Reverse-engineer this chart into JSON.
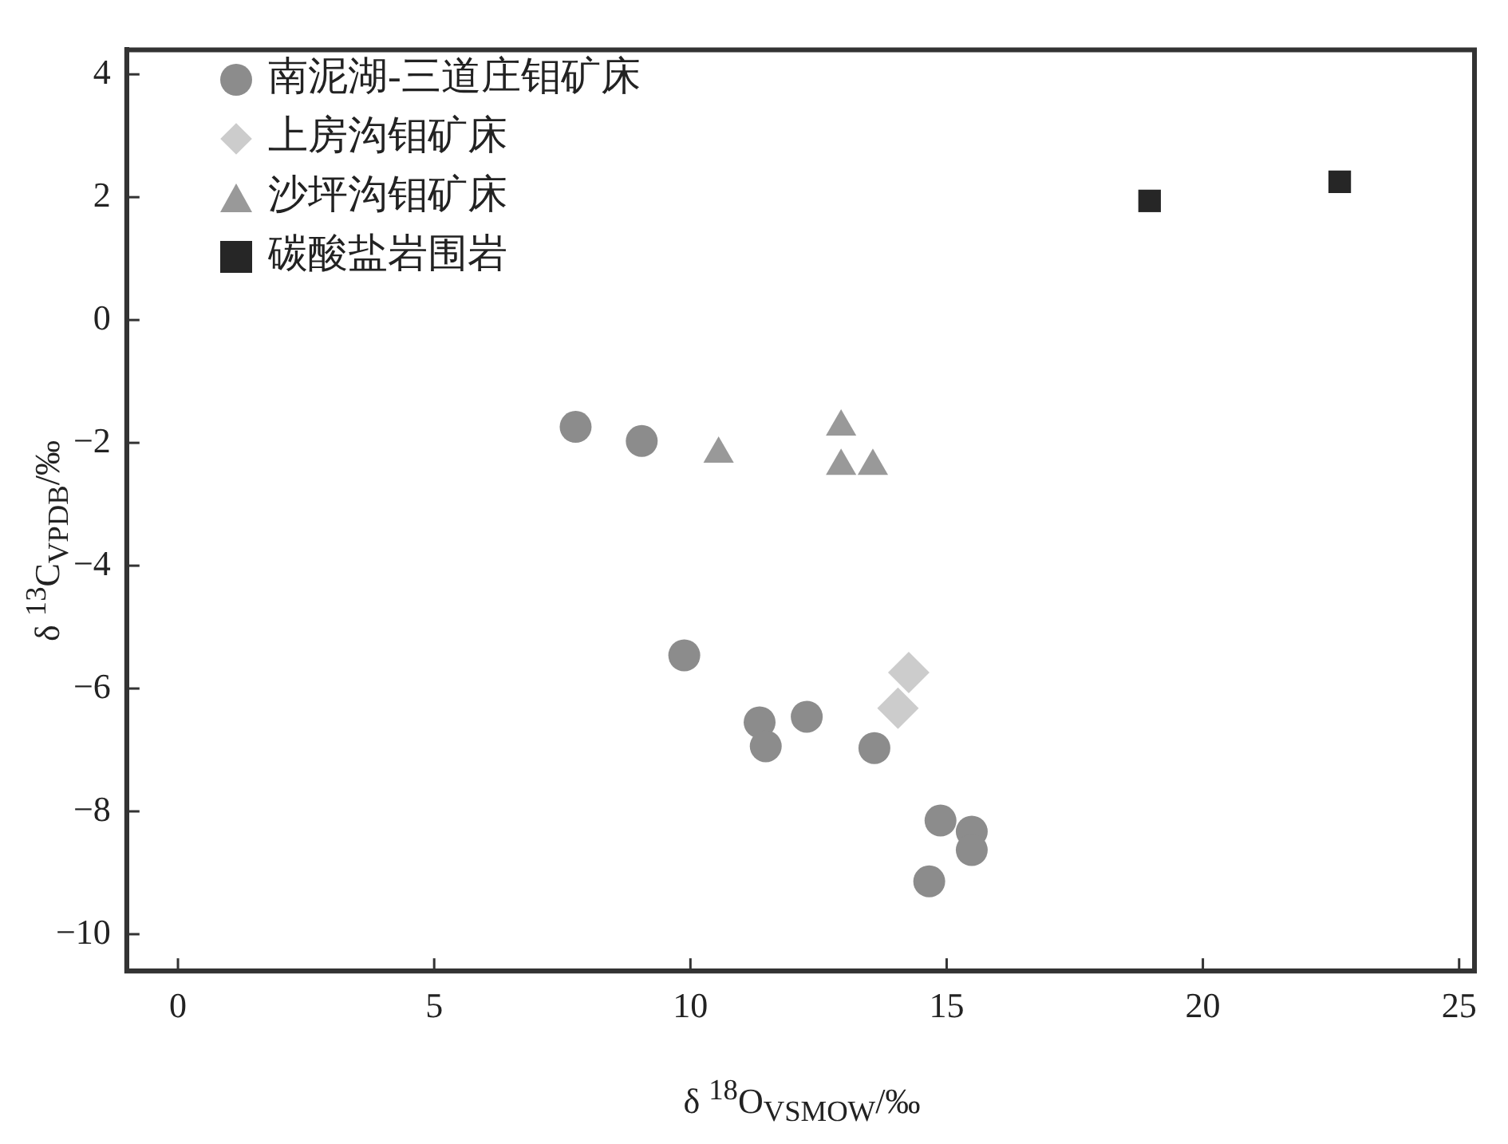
{
  "chart_data": {
    "type": "scatter",
    "xlabel": "δ $^{18}$O$_{VSMOW}$/‰",
    "ylabel": "δ $^{13}$C$_{VPDB}$/‰",
    "xlim": [
      -1,
      25.3
    ],
    "ylim": [
      -10.6,
      4.4
    ],
    "xticks": [
      0,
      5,
      10,
      15,
      20,
      25
    ],
    "yticks": [
      -10,
      -8,
      -6,
      -4,
      -2,
      0,
      2,
      4
    ],
    "grid": false,
    "legend": "top left",
    "series": [
      {
        "name": "南泥湖-三道庄钼矿床",
        "color": "#8c8c8c",
        "marker": "circle",
        "x": [
          7.76,
          9.05,
          9.88,
          11.35,
          11.47,
          12.27,
          13.59,
          14.88,
          15.49,
          15.49,
          14.66
        ],
        "values": [
          -1.74,
          -1.97,
          -5.46,
          -6.55,
          -6.94,
          -6.46,
          -6.97,
          -8.15,
          -8.33,
          -8.63,
          -9.14
        ]
      },
      {
        "name": "上房沟钼矿床",
        "color": "#cccccc",
        "marker": "diamond",
        "x": [
          14.26,
          14.05
        ],
        "values": [
          -5.74,
          -6.32
        ]
      },
      {
        "name": "沙坪沟钼矿床",
        "color": "#999999",
        "marker": "triangle",
        "x": [
          10.55,
          12.94,
          12.94,
          13.56
        ],
        "values": [
          -2.18,
          -1.74,
          -2.38,
          -2.38
        ]
      },
      {
        "name": "碳酸盐岩围岩",
        "color": "#262626",
        "marker": "square",
        "x": [
          18.96,
          22.67
        ],
        "values": [
          1.94,
          2.25
        ]
      }
    ]
  }
}
